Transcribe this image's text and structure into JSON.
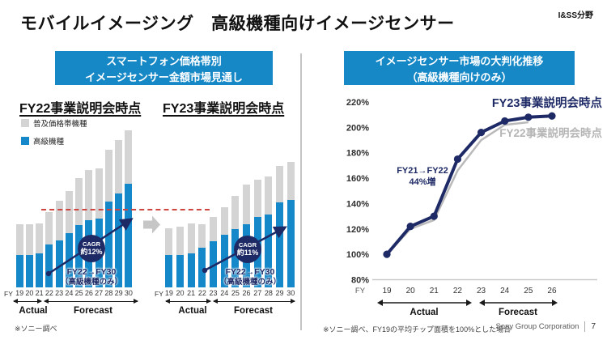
{
  "slide": {
    "title": "モバイルイメージング　高級機種向けイメージセンサー",
    "division_tag": "I&SS分野",
    "footnote_left": "※ソニー調べ",
    "footnote_right": "※ソニー調べ、FY19の平均チップ面積を100%とした場合",
    "footer_company": "Sony Group Corporation",
    "footer_page": "7"
  },
  "left_panel": {
    "header_line1": "スマートフォン価格帯別",
    "header_line2": "イメージセンサー金額市場見通し",
    "legend": [
      {
        "label": "普及価格帯機種",
        "color": "#d4d4d4"
      },
      {
        "label": "高級機種",
        "color": "#1488c9"
      }
    ]
  },
  "right_panel": {
    "header_line1": "イメージセンサー市場の大判化推移",
    "header_line2": "（高級機種向けのみ）"
  },
  "chart_data": [
    {
      "type": "bar",
      "stacked": true,
      "title": "FY22事業説明会時点",
      "x_prefix": "FY",
      "categories": [
        "19",
        "20",
        "21",
        "22",
        "23",
        "24",
        "25",
        "26",
        "27",
        "28",
        "29",
        "30"
      ],
      "unit": "relative height in source px (no value axis shown)",
      "series": [
        {
          "name": "高級機種",
          "color": "#1488c9",
          "values": [
            40,
            40,
            42,
            53,
            58,
            67,
            77,
            83,
            85,
            106,
            116,
            128
          ]
        },
        {
          "name": "普及価格帯機種",
          "color": "#d4d4d4",
          "values": [
            38,
            38,
            37,
            40,
            49,
            52,
            58,
            62,
            62,
            64,
            66,
            66
          ]
        }
      ],
      "annotations": {
        "cagr_line1": "CAGR",
        "cagr_line2": "約12%",
        "range_line1": "FY22→FY30",
        "range_line2": "（高級機種のみ）"
      },
      "axis_groups": [
        {
          "label": "Actual",
          "years": "19–21"
        },
        {
          "label": "Forecast",
          "years": "22–30"
        }
      ]
    },
    {
      "type": "bar",
      "stacked": true,
      "title": "FY23事業説明会時点",
      "x_prefix": "FY",
      "categories": [
        "19",
        "20",
        "21",
        "22",
        "23",
        "24",
        "25",
        "26",
        "27",
        "28",
        "29",
        "30"
      ],
      "unit": "relative height in source px (no value axis shown)",
      "series": [
        {
          "name": "高級機種",
          "color": "#1488c9",
          "values": [
            40,
            40,
            42,
            49,
            57,
            65,
            72,
            78,
            87,
            90,
            105,
            108
          ]
        },
        {
          "name": "普及価格帯機種",
          "color": "#d4d4d4",
          "values": [
            33,
            35,
            37,
            29,
            30,
            34,
            41,
            49,
            46,
            47,
            45,
            47
          ]
        }
      ],
      "annotations": {
        "cagr_line1": "CAGR",
        "cagr_line2": "約11%",
        "range_line1": "FY22→FY30",
        "range_line2": "（高級機種のみ）"
      },
      "axis_groups": [
        {
          "label": "Actual",
          "years": "19–22"
        },
        {
          "label": "Forecast",
          "years": "23–30"
        }
      ]
    },
    {
      "type": "line",
      "x_prefix": "FY",
      "categories": [
        "19",
        "20",
        "21",
        "22",
        "23",
        "24",
        "25",
        "26"
      ],
      "y_ticks": [
        "220%",
        "200%",
        "180%",
        "160%",
        "140%",
        "120%",
        "100%",
        "80%"
      ],
      "ylim": [
        80,
        220
      ],
      "unit": "percent, FY19 average chip area = 100%",
      "series": [
        {
          "name": "FY23事業説明会時点",
          "color": "#1e2a66",
          "markers": true,
          "values": [
            100,
            122,
            130,
            175,
            196,
            205,
            208,
            209
          ]
        },
        {
          "name": "FY22事業説明会時点",
          "color": "#b9b9b9",
          "markers": false,
          "values": [
            100,
            120,
            127,
            166,
            190,
            202,
            204
          ]
        }
      ],
      "annotation_line1": "FY21→FY22",
      "annotation_line2": "44%増",
      "axis_groups": [
        {
          "label": "Actual",
          "years": "19–22"
        },
        {
          "label": "Forecast",
          "years": "23–26"
        }
      ]
    }
  ]
}
